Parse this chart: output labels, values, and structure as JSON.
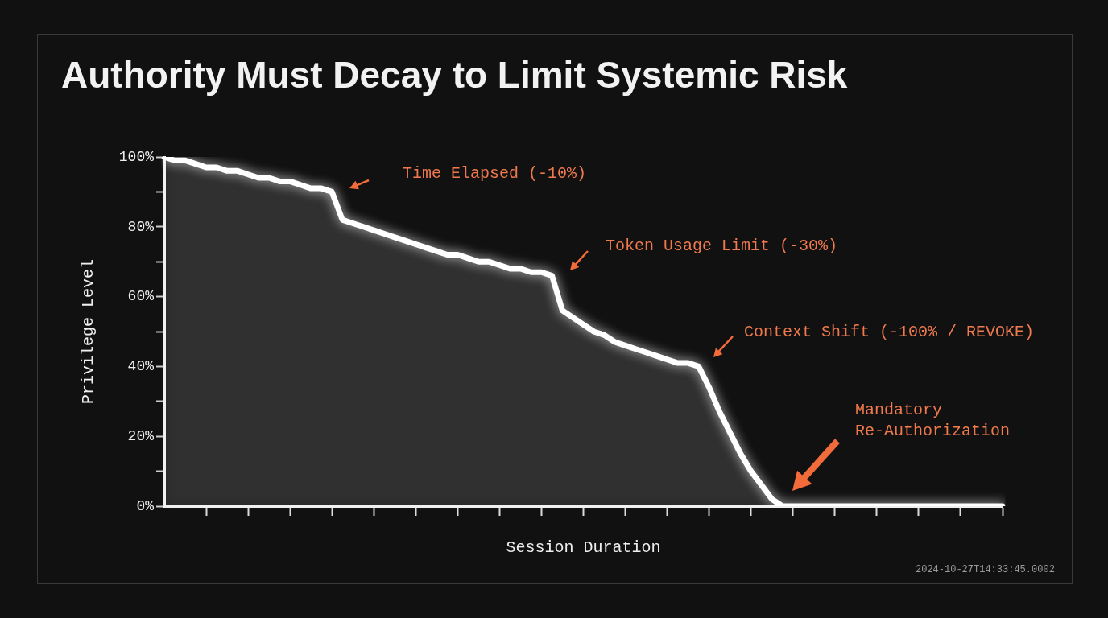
{
  "chart_data": {
    "type": "area",
    "title": "Authority Must Decay to Limit Systemic Risk",
    "xlabel": "Session Duration",
    "ylabel": "Privilege Level",
    "categories": [
      null,
      null,
      null,
      null,
      null,
      null,
      null,
      null,
      null,
      null,
      null,
      null,
      null,
      null,
      null,
      null,
      null,
      null,
      null,
      null,
      null,
      null,
      null,
      null,
      null,
      null,
      null,
      null,
      null,
      null,
      null,
      null,
      null,
      null,
      null,
      null,
      null,
      null,
      null,
      null,
      null,
      null,
      null,
      null,
      null,
      null,
      null,
      null,
      null,
      null,
      null,
      null,
      null,
      null,
      null,
      null,
      null,
      null,
      null,
      null,
      null,
      null,
      null,
      null,
      null,
      null,
      null,
      null,
      null,
      null,
      null,
      null,
      null,
      null,
      null,
      null,
      null,
      null,
      null,
      null,
      null
    ],
    "series": [
      {
        "color": "#ffffff",
        "values": [
          100,
          99,
          99,
          98,
          97,
          97,
          96,
          96,
          95,
          94,
          94,
          93,
          93,
          92,
          91,
          91,
          90,
          82,
          81,
          80,
          79,
          78,
          77,
          76,
          75,
          74,
          73,
          72,
          72,
          71,
          70,
          70,
          69,
          68,
          68,
          67,
          67,
          66,
          56,
          54,
          52,
          50,
          49,
          47,
          46,
          45,
          44,
          43,
          42,
          41,
          41,
          40,
          34,
          27,
          21,
          15,
          10,
          6,
          2,
          0,
          0,
          0,
          0,
          0,
          0,
          0,
          0,
          0,
          0,
          0,
          0,
          0,
          0,
          0,
          0,
          0,
          0,
          0,
          0,
          0,
          0
        ]
      }
    ],
    "ylim": [
      0,
      100
    ],
    "yticks": [
      {
        "value": 0,
        "label": "0%"
      },
      {
        "value": 10,
        "label": null
      },
      {
        "value": 20,
        "label": "20%"
      },
      {
        "value": 30,
        "label": null
      },
      {
        "value": 40,
        "label": "40%"
      },
      {
        "value": 50,
        "label": null
      },
      {
        "value": 60,
        "label": "60%"
      },
      {
        "value": 70,
        "label": null
      },
      {
        "value": 80,
        "label": "80%"
      },
      {
        "value": 90,
        "label": null
      },
      {
        "value": 100,
        "label": "100%"
      }
    ],
    "tick_labels": "y",
    "grid": false,
    "legend": false,
    "marker": "none",
    "line_style": "solid",
    "annotations": [
      "Time Elapsed (-10%)",
      "Token Usage Limit (-30%)",
      "Context Shift (-100% / REVOKE)",
      "Mandatory\nRe-Authorization",
      "2024-10-27T14:33:45.0002"
    ]
  }
}
